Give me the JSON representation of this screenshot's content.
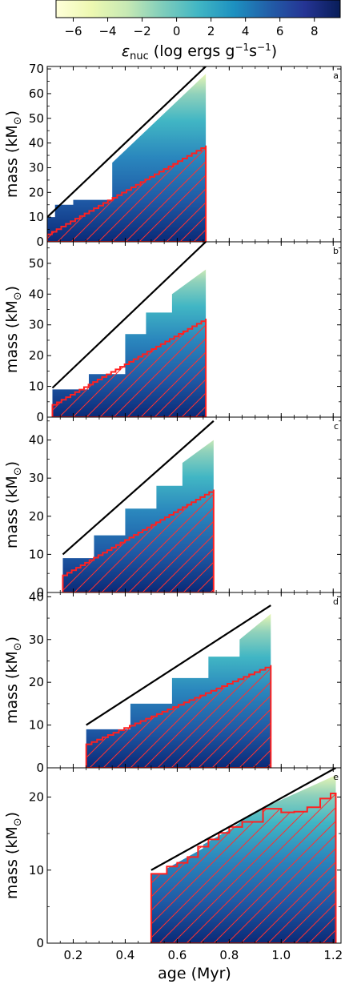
{
  "colorbar": {
    "ticks": [
      "−6",
      "−4",
      "−2",
      "0",
      "2",
      "4",
      "6",
      "8"
    ],
    "tick_values": [
      -6,
      -4,
      -2,
      0,
      2,
      4,
      6,
      8
    ],
    "range": [
      -7,
      9.5
    ],
    "colormap": [
      "#ffffd9",
      "#edf8b1",
      "#c7e9b4",
      "#7fcdbb",
      "#41b6c4",
      "#1d91c0",
      "#225ea8",
      "#253494",
      "#081d58"
    ],
    "label_var": "ε",
    "label_sub": "nuc",
    "label_open": " (log ergs g",
    "label_exp1": "−1",
    "label_mid": "s",
    "label_exp2": "−1",
    "label_close": ")"
  },
  "colors": {
    "boundary": "#000000",
    "core": "#ff2020",
    "hatch": "#ff3030"
  },
  "chart_data": [
    {
      "type": "area",
      "panel": "a",
      "ylabel_main": "mass (kM",
      "ylabel_close": ")",
      "xlim": [
        0.1,
        1.23
      ],
      "ylim": [
        0,
        71
      ],
      "yticks": [
        0,
        10,
        20,
        30,
        40,
        50,
        60,
        70
      ],
      "age_range": [
        0.1,
        0.71
      ],
      "boundary_line": [
        [
          0.1,
          10
        ],
        [
          0.71,
          71
        ]
      ],
      "envelope_steps": [
        [
          0.1,
          10
        ],
        [
          0.13,
          10
        ],
        [
          0.13,
          15
        ],
        [
          0.2,
          15
        ],
        [
          0.2,
          17
        ],
        [
          0.35,
          17
        ],
        [
          0.35,
          32
        ],
        [
          0.71,
          68
        ]
      ],
      "core_line": [
        [
          0.1,
          3
        ],
        [
          0.71,
          39
        ]
      ]
    },
    {
      "type": "area",
      "panel": "b",
      "ylabel_main": "mass (kM",
      "ylabel_close": ")",
      "xlim": [
        0.1,
        1.23
      ],
      "ylim": [
        0,
        57
      ],
      "yticks": [
        0,
        10,
        20,
        30,
        40,
        50
      ],
      "age_range": [
        0.12,
        0.71
      ],
      "boundary_line": [
        [
          0.12,
          9.5
        ],
        [
          0.71,
          57
        ]
      ],
      "envelope_steps": [
        [
          0.12,
          9
        ],
        [
          0.26,
          9
        ],
        [
          0.26,
          14
        ],
        [
          0.4,
          14
        ],
        [
          0.4,
          27
        ],
        [
          0.48,
          27
        ],
        [
          0.48,
          34
        ],
        [
          0.58,
          34
        ],
        [
          0.58,
          40
        ],
        [
          0.71,
          48
        ],
        [
          0.71,
          50
        ]
      ],
      "core_line": [
        [
          0.12,
          4
        ],
        [
          0.71,
          32
        ]
      ]
    },
    {
      "type": "area",
      "panel": "c",
      "ylabel_main": "mass (kM",
      "ylabel_close": ")",
      "xlim": [
        0.1,
        1.23
      ],
      "ylim": [
        0,
        46
      ],
      "yticks": [
        0,
        10,
        20,
        30,
        40
      ],
      "age_range": [
        0.16,
        0.74
      ],
      "boundary_line": [
        [
          0.16,
          10
        ],
        [
          0.74,
          45
        ]
      ],
      "envelope_steps": [
        [
          0.16,
          9
        ],
        [
          0.28,
          9
        ],
        [
          0.28,
          15
        ],
        [
          0.4,
          15
        ],
        [
          0.4,
          22
        ],
        [
          0.52,
          22
        ],
        [
          0.52,
          28
        ],
        [
          0.62,
          28
        ],
        [
          0.62,
          34
        ],
        [
          0.74,
          40
        ],
        [
          0.74,
          42
        ]
      ],
      "core_line": [
        [
          0.16,
          4.5
        ],
        [
          0.74,
          27
        ]
      ]
    },
    {
      "type": "area",
      "panel": "d",
      "ylabel_main": "mass (kM",
      "ylabel_close": ")",
      "xlim": [
        0.1,
        1.23
      ],
      "ylim": [
        0,
        41
      ],
      "yticks": [
        0,
        10,
        20,
        30,
        40
      ],
      "age_range": [
        0.25,
        0.96
      ],
      "boundary_line": [
        [
          0.25,
          10
        ],
        [
          0.96,
          38
        ]
      ],
      "envelope_steps": [
        [
          0.25,
          9
        ],
        [
          0.42,
          9
        ],
        [
          0.42,
          15
        ],
        [
          0.58,
          15
        ],
        [
          0.58,
          21
        ],
        [
          0.72,
          21
        ],
        [
          0.72,
          26
        ],
        [
          0.84,
          26
        ],
        [
          0.84,
          30
        ],
        [
          0.96,
          36
        ]
      ],
      "core_line": [
        [
          0.25,
          5.5
        ],
        [
          0.96,
          24
        ]
      ]
    },
    {
      "type": "area",
      "panel": "e",
      "ylabel_main": "mass (kM",
      "ylabel_close": ")",
      "xlim": [
        0.1,
        1.23
      ],
      "ylim": [
        0,
        24
      ],
      "yticks": [
        0,
        10,
        20
      ],
      "xticks": [
        "0.2",
        "0.4",
        "0.6",
        "0.8",
        "1.0",
        "1.2"
      ],
      "xtick_values": [
        0.2,
        0.4,
        0.6,
        0.8,
        1.0,
        1.2
      ],
      "xlabel": "age (Myr)",
      "age_range": [
        0.5,
        1.21
      ],
      "boundary_line": [
        [
          0.5,
          10
        ],
        [
          1.21,
          24
        ]
      ],
      "envelope_steps": [
        [
          0.5,
          9.5
        ],
        [
          0.56,
          9.5
        ],
        [
          0.56,
          10.2
        ],
        [
          0.7,
          13
        ],
        [
          0.7,
          13.5
        ],
        [
          0.8,
          15.5
        ],
        [
          0.9,
          18
        ],
        [
          1.21,
          23
        ]
      ],
      "core_steps": [
        [
          0.5,
          9.5
        ],
        [
          0.56,
          9.5
        ],
        [
          0.56,
          10.5
        ],
        [
          0.6,
          10.5
        ],
        [
          0.6,
          11
        ],
        [
          0.64,
          11
        ],
        [
          0.64,
          11.8
        ],
        [
          0.68,
          11.8
        ],
        [
          0.68,
          13.2
        ],
        [
          0.72,
          13.2
        ],
        [
          0.72,
          14.2
        ],
        [
          0.76,
          14.2
        ],
        [
          0.76,
          15.1
        ],
        [
          0.8,
          15.1
        ],
        [
          0.8,
          15.9
        ],
        [
          0.85,
          15.9
        ],
        [
          0.85,
          16.6
        ],
        [
          0.93,
          16.6
        ],
        [
          0.93,
          18.4
        ],
        [
          1.0,
          18.4
        ],
        [
          1.0,
          17.9
        ],
        [
          1.05,
          17.9
        ],
        [
          1.05,
          18.0
        ],
        [
          1.1,
          18.0
        ],
        [
          1.1,
          18.6
        ],
        [
          1.15,
          18.6
        ],
        [
          1.15,
          19.8
        ],
        [
          1.19,
          19.8
        ],
        [
          1.19,
          20.5
        ],
        [
          1.21,
          20.5
        ]
      ]
    }
  ]
}
